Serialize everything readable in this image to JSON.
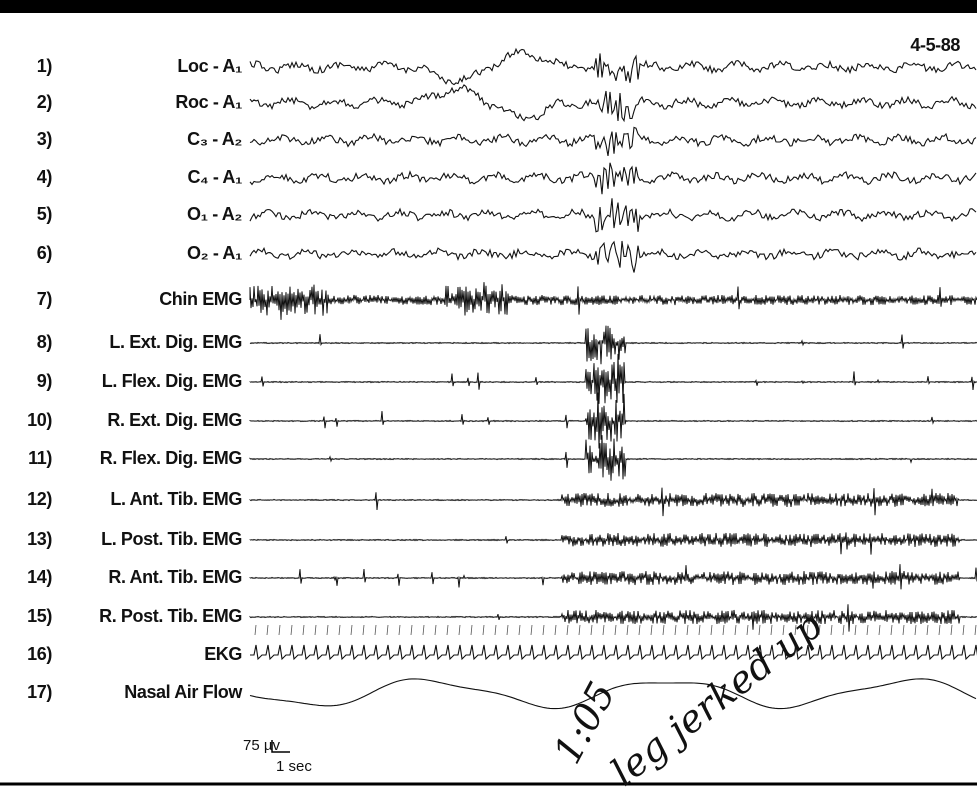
{
  "date": "4-5-88",
  "channels": [
    {
      "number": "1)",
      "label": "Loc - A₁"
    },
    {
      "number": "2)",
      "label": "Roc - A₁"
    },
    {
      "number": "3)",
      "label": "C₃ - A₂"
    },
    {
      "number": "4)",
      "label": "C₄ - A₁"
    },
    {
      "number": "5)",
      "label": "O₁ - A₂"
    },
    {
      "number": "6)",
      "label": "O₂ - A₁"
    },
    {
      "number": "7)",
      "label": "Chin EMG"
    },
    {
      "number": "8)",
      "label": "L. Ext. Dig. EMG"
    },
    {
      "number": "9)",
      "label": "L. Flex. Dig. EMG"
    },
    {
      "number": "10)",
      "label": "R. Ext. Dig. EMG"
    },
    {
      "number": "11)",
      "label": "R. Flex. Dig. EMG"
    },
    {
      "number": "12)",
      "label": "L. Ant. Tib. EMG"
    },
    {
      "number": "13)",
      "label": "L. Post. Tib. EMG"
    },
    {
      "number": "14)",
      "label": "R. Ant. Tib. EMG"
    },
    {
      "number": "15)",
      "label": "R. Post. Tib. EMG"
    },
    {
      "number": "16)",
      "label": "EKG"
    },
    {
      "number": "17)",
      "label": "Nasal Air Flow"
    }
  ],
  "scale": {
    "amplitude": "75 µv",
    "time": "1 sec"
  },
  "annotation": {
    "time": "1:05",
    "note": "leg jerked up"
  }
}
